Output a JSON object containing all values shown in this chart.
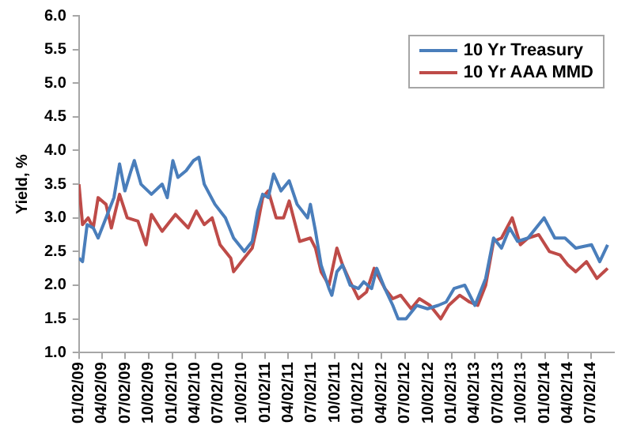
{
  "chart_data": {
    "type": "line",
    "ylabel": "Yield, %",
    "xlim": [
      "2009-01-02",
      "2014-09-30"
    ],
    "xticks": [
      {
        "value": "2009-01-02",
        "label": "01/02/09"
      },
      {
        "value": "2009-04-02",
        "label": "04/02/09"
      },
      {
        "value": "2009-07-02",
        "label": "07/02/09"
      },
      {
        "value": "2009-10-02",
        "label": "10/02/09"
      },
      {
        "value": "2010-01-02",
        "label": "01/02/10"
      },
      {
        "value": "2010-04-02",
        "label": "04/02/10"
      },
      {
        "value": "2010-07-02",
        "label": "07/02/10"
      },
      {
        "value": "2010-10-02",
        "label": "10/02/10"
      },
      {
        "value": "2011-01-02",
        "label": "01/02/11"
      },
      {
        "value": "2011-04-02",
        "label": "04/02/11"
      },
      {
        "value": "2011-07-02",
        "label": "07/02/11"
      },
      {
        "value": "2011-10-02",
        "label": "10/02/11"
      },
      {
        "value": "2012-01-02",
        "label": "01/02/12"
      },
      {
        "value": "2012-04-02",
        "label": "04/02/12"
      },
      {
        "value": "2012-07-02",
        "label": "07/02/12"
      },
      {
        "value": "2012-10-02",
        "label": "10/02/12"
      },
      {
        "value": "2013-01-02",
        "label": "01/02/13"
      },
      {
        "value": "2013-04-02",
        "label": "04/02/13"
      },
      {
        "value": "2013-07-02",
        "label": "07/02/13"
      },
      {
        "value": "2013-10-02",
        "label": "10/02/13"
      },
      {
        "value": "2014-01-02",
        "label": "01/02/14"
      },
      {
        "value": "2014-04-02",
        "label": "04/02/14"
      },
      {
        "value": "2014-07-02",
        "label": "07/02/14"
      }
    ],
    "ylim": [
      1,
      6
    ],
    "yticks": [
      {
        "value": 1,
        "label": "1.0"
      },
      {
        "value": 1.5,
        "label": "1.5"
      },
      {
        "value": 2,
        "label": "2.0"
      },
      {
        "value": 2.5,
        "label": "2.5"
      },
      {
        "value": 3,
        "label": "3.0"
      },
      {
        "value": 3.5,
        "label": "3.5"
      },
      {
        "value": 4,
        "label": "4.0"
      },
      {
        "value": 4.5,
        "label": "4.5"
      },
      {
        "value": 5,
        "label": "5.0"
      },
      {
        "value": 5.5,
        "label": "5.5"
      },
      {
        "value": 6,
        "label": "6.0"
      }
    ],
    "grid": false,
    "legend": "top right",
    "marker": "none",
    "line_style": "solid",
    "series": [
      {
        "name": "10 Yr Treasury",
        "color": "#4a7ebb",
        "x": [
          "2009-01-02",
          "2009-01-16",
          "2009-02-03",
          "2009-02-27",
          "2009-03-18",
          "2009-04-18",
          "2009-05-19",
          "2009-06-10",
          "2009-07-01",
          "2009-07-25",
          "2009-08-07",
          "2009-09-02",
          "2009-10-13",
          "2009-11-24",
          "2009-12-14",
          "2010-01-05",
          "2010-01-25",
          "2010-02-26",
          "2010-03-27",
          "2010-04-17",
          "2010-05-08",
          "2010-06-19",
          "2010-07-30",
          "2010-08-31",
          "2010-09-21",
          "2010-10-12",
          "2010-11-12",
          "2010-12-03",
          "2010-12-23",
          "2011-01-14",
          "2011-02-04",
          "2011-03-05",
          "2011-04-06",
          "2011-05-07",
          "2011-06-17",
          "2011-06-28",
          "2011-07-18",
          "2011-08-09",
          "2011-09-09",
          "2011-09-20",
          "2011-10-10",
          "2011-11-01",
          "2011-12-01",
          "2012-01-02",
          "2012-01-23",
          "2012-02-23",
          "2012-03-14",
          "2012-04-15",
          "2012-05-16",
          "2012-06-06",
          "2012-07-07",
          "2012-08-18",
          "2012-09-29",
          "2012-11-10",
          "2012-12-11",
          "2013-01-11",
          "2013-02-22",
          "2013-04-03",
          "2013-05-15",
          "2013-06-15",
          "2013-07-16",
          "2013-08-17",
          "2013-09-17",
          "2013-10-28",
          "2013-12-30",
          "2014-02-10",
          "2014-03-22",
          "2014-05-03",
          "2014-07-04",
          "2014-08-05",
          "2014-09-05"
        ],
        "values": [
          2.4,
          2.35,
          2.9,
          2.85,
          2.7,
          3.0,
          3.3,
          3.8,
          3.4,
          3.7,
          3.85,
          3.5,
          3.35,
          3.5,
          3.3,
          3.85,
          3.6,
          3.7,
          3.85,
          3.9,
          3.5,
          3.2,
          3.0,
          2.7,
          2.6,
          2.5,
          2.65,
          3.1,
          3.35,
          3.3,
          3.65,
          3.4,
          3.55,
          3.2,
          3.0,
          3.2,
          2.8,
          2.3,
          1.95,
          1.85,
          2.2,
          2.3,
          2.0,
          1.95,
          2.05,
          1.95,
          2.25,
          1.95,
          1.7,
          1.5,
          1.5,
          1.7,
          1.65,
          1.7,
          1.75,
          1.95,
          2.0,
          1.7,
          2.1,
          2.7,
          2.55,
          2.85,
          2.65,
          2.7,
          3.0,
          2.7,
          2.7,
          2.55,
          2.6,
          2.35,
          2.6
        ]
      },
      {
        "name": "10 Yr AAA MMD",
        "color": "#be4b48",
        "x": [
          "2009-01-02",
          "2009-01-16",
          "2009-02-07",
          "2009-02-27",
          "2009-03-18",
          "2009-04-18",
          "2009-05-09",
          "2009-06-10",
          "2009-07-10",
          "2009-08-21",
          "2009-09-22",
          "2009-10-13",
          "2009-11-24",
          "2010-01-15",
          "2010-03-06",
          "2010-04-07",
          "2010-05-08",
          "2010-06-08",
          "2010-07-09",
          "2010-08-20",
          "2010-08-31",
          "2010-10-01",
          "2010-11-12",
          "2010-12-03",
          "2010-12-23",
          "2011-01-14",
          "2011-02-14",
          "2011-03-15",
          "2011-04-06",
          "2011-05-17",
          "2011-06-28",
          "2011-07-18",
          "2011-08-09",
          "2011-09-09",
          "2011-10-10",
          "2011-11-01",
          "2011-12-01",
          "2012-01-02",
          "2012-02-03",
          "2012-03-04",
          "2012-04-15",
          "2012-05-16",
          "2012-06-16",
          "2012-07-27",
          "2012-08-28",
          "2012-10-09",
          "2012-11-20",
          "2012-12-21",
          "2013-02-02",
          "2013-03-13",
          "2013-04-14",
          "2013-05-15",
          "2013-06-15",
          "2013-07-16",
          "2013-08-27",
          "2013-09-28",
          "2013-10-28",
          "2013-12-09",
          "2014-01-20",
          "2014-03-02",
          "2014-04-02",
          "2014-05-03",
          "2014-06-14",
          "2014-07-25",
          "2014-09-05"
        ],
        "values": [
          3.5,
          2.9,
          3.0,
          2.85,
          3.3,
          3.2,
          2.85,
          3.35,
          3.0,
          2.95,
          2.6,
          3.05,
          2.8,
          3.05,
          2.85,
          3.1,
          2.9,
          3.0,
          2.6,
          2.4,
          2.2,
          2.35,
          2.55,
          2.9,
          3.3,
          3.4,
          3.0,
          3.0,
          3.25,
          2.65,
          2.7,
          2.55,
          2.2,
          2.0,
          2.55,
          2.3,
          2.05,
          1.8,
          1.9,
          2.25,
          1.95,
          1.8,
          1.85,
          1.65,
          1.8,
          1.7,
          1.5,
          1.7,
          1.85,
          1.75,
          1.7,
          2.0,
          2.65,
          2.7,
          3.0,
          2.6,
          2.7,
          2.75,
          2.5,
          2.45,
          2.3,
          2.2,
          2.35,
          2.1,
          2.25
        ]
      }
    ]
  }
}
